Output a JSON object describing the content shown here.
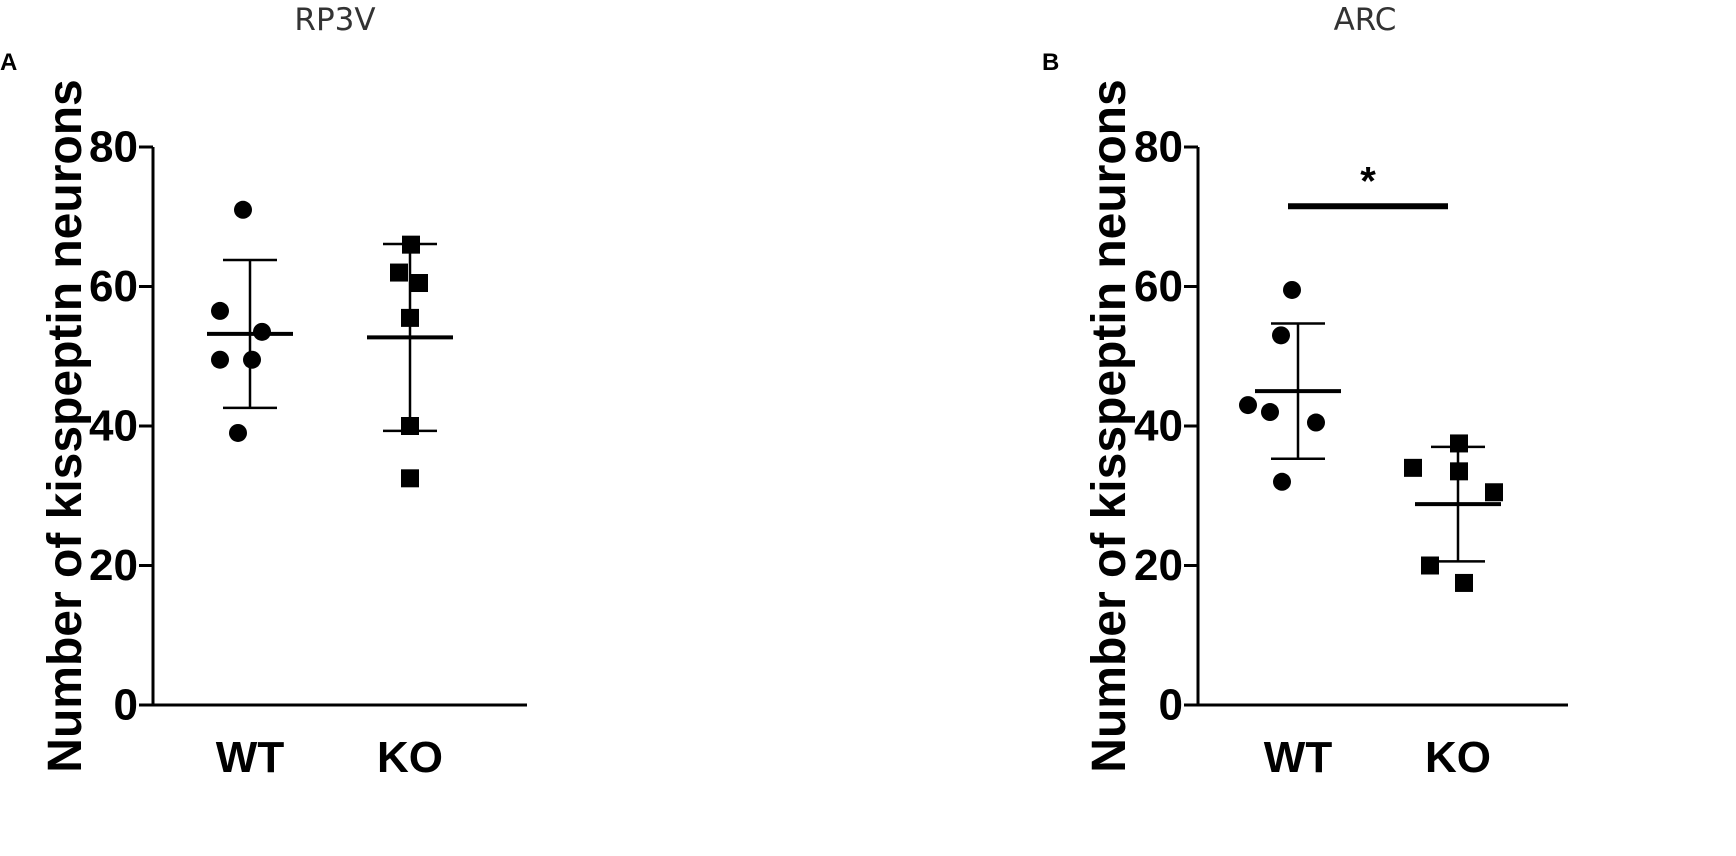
{
  "chart_data": [
    {
      "type": "scatter",
      "title": "RP3V",
      "panel_label": "A",
      "ylabel": "Number of kisspeptin neurons",
      "xlabel": "",
      "ylim": [
        0,
        80
      ],
      "yticks": [
        0,
        20,
        40,
        60,
        80
      ],
      "categories": [
        "WT",
        "KO"
      ],
      "grid": false,
      "series": [
        {
          "category": "WT",
          "marker": "circle",
          "points": [
            71,
            56.5,
            53.5,
            49.5,
            49.5,
            39
          ],
          "mean": 53.2,
          "error_upper": 63.8,
          "error_lower": 42.6
        },
        {
          "category": "KO",
          "marker": "square",
          "points": [
            66,
            62,
            60.5,
            55.5,
            40,
            32.5
          ],
          "mean": 52.7,
          "error_upper": 66.1,
          "error_lower": 39.3
        }
      ],
      "significance": null
    },
    {
      "type": "scatter",
      "title": "ARC",
      "panel_label": "B",
      "ylabel": "Number of kisspeptin neurons",
      "xlabel": "",
      "ylim": [
        0,
        80
      ],
      "yticks": [
        0,
        20,
        40,
        60,
        80
      ],
      "categories": [
        "WT",
        "KO"
      ],
      "grid": false,
      "series": [
        {
          "category": "WT",
          "marker": "circle",
          "points": [
            59.5,
            53,
            43,
            42,
            40.5,
            32
          ],
          "mean": 45,
          "error_upper": 54.7,
          "error_lower": 35.3
        },
        {
          "category": "KO",
          "marker": "square",
          "points": [
            37.5,
            34,
            33.5,
            30.5,
            20,
            17.5
          ],
          "mean": 28.8,
          "error_upper": 37,
          "error_lower": 20.6
        }
      ],
      "significance": {
        "label": "*",
        "y": 71.5
      }
    }
  ]
}
